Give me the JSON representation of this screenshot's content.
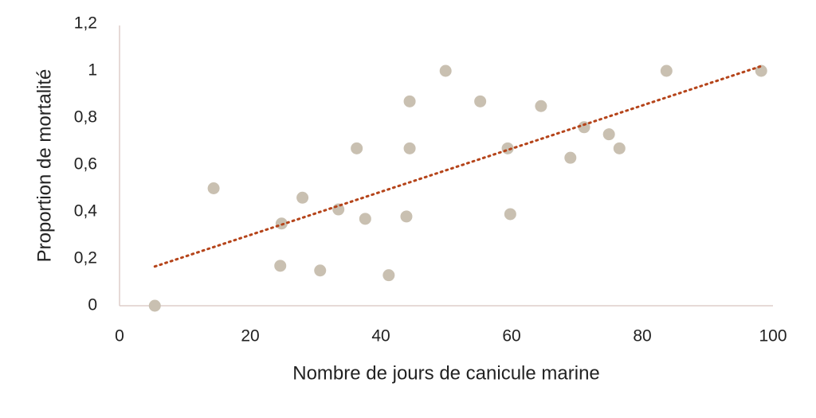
{
  "chart_data": {
    "type": "scatter",
    "x_label": "Nombre de jours de canicule marine",
    "y_label": "Proportion de mortalité",
    "series": [
      {
        "color": "#c9c0b1",
        "x": [
          5.4,
          14.4,
          24.8,
          24.6,
          28.0,
          30.7,
          33.5,
          36.3,
          37.6,
          41.2,
          43.9,
          44.4,
          44.4,
          49.9,
          55.2,
          59.4,
          59.8,
          64.5,
          69.0,
          71.1,
          74.9,
          76.5,
          83.7,
          98.2
        ],
        "values": [
          0,
          0.5,
          0.35,
          0.17,
          0.46,
          0.15,
          0.41,
          0.67,
          0.37,
          0.13,
          0.38,
          0.87,
          0.67,
          1.0,
          0.87,
          0.67,
          0.39,
          0.85,
          0.63,
          0.76,
          0.73,
          0.67,
          1.0,
          1.0
        ]
      }
    ],
    "trendline": {
      "x": [
        5.4,
        98.2
      ],
      "values": [
        0.167,
        1.02
      ],
      "color": "#b5441a"
    },
    "xlim": [
      0,
      100
    ],
    "xticks": [
      0,
      20,
      40,
      60,
      80,
      100
    ],
    "ylim": [
      0,
      1.2
    ],
    "yticks": [
      0,
      {
        "value": 0.2,
        "label": "0,2"
      },
      {
        "value": 0.4,
        "label": "0,4"
      },
      {
        "value": 0.6,
        "label": "0,6"
      },
      {
        "value": 0.8,
        "label": "0,8"
      },
      1,
      {
        "value": 1.2,
        "label": "1,2"
      }
    ],
    "grid": false
  }
}
